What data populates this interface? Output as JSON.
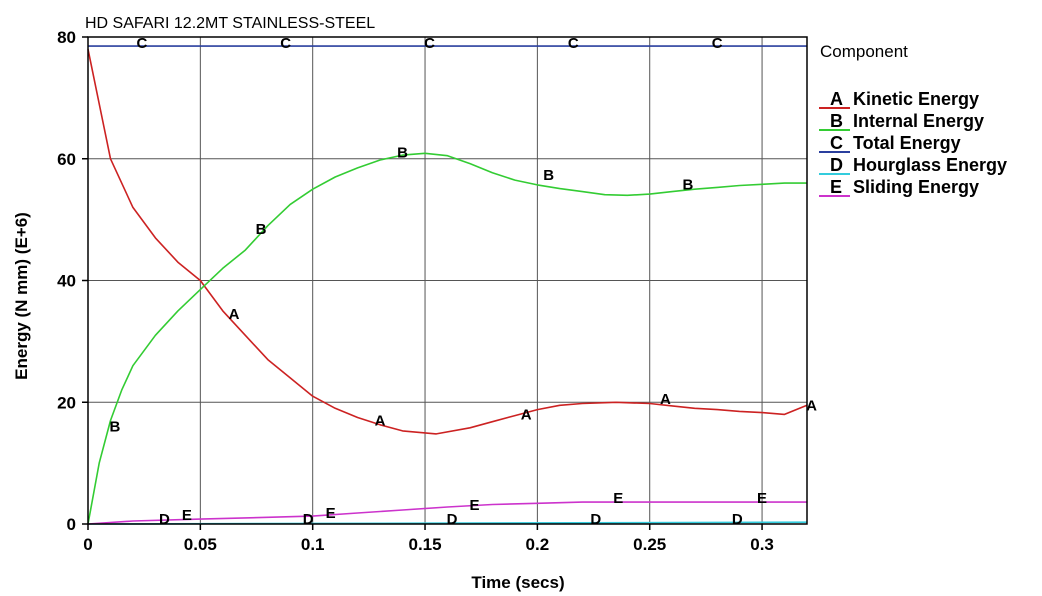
{
  "chart_data": {
    "type": "line",
    "title": "HD SAFARI 12.2MT STAINLESS-STEEL",
    "xlabel": "Time (secs)",
    "ylabel": "Energy (N mm) (E+6)",
    "xlim": [
      0,
      0.32
    ],
    "ylim": [
      0,
      80
    ],
    "xticks": [
      "0",
      "0.05",
      "0.1",
      "0.15",
      "0.2",
      "0.25",
      "0.3"
    ],
    "xtick_values": [
      0,
      0.05,
      0.1,
      0.15,
      0.2,
      0.25,
      0.3
    ],
    "yticks": [
      "0",
      "20",
      "40",
      "60",
      "80"
    ],
    "ytick_values": [
      0,
      20,
      40,
      60,
      80
    ],
    "grid": true,
    "legend_title": "Component",
    "legend_position": "right",
    "series": [
      {
        "letter": "A",
        "name": "Kinetic Energy",
        "color": "#cc2222",
        "points": [
          [
            0,
            78
          ],
          [
            0.01,
            60
          ],
          [
            0.02,
            52
          ],
          [
            0.03,
            47
          ],
          [
            0.04,
            43
          ],
          [
            0.05,
            40
          ],
          [
            0.06,
            35
          ],
          [
            0.07,
            31
          ],
          [
            0.08,
            27
          ],
          [
            0.09,
            24
          ],
          [
            0.1,
            21
          ],
          [
            0.11,
            19
          ],
          [
            0.12,
            17.5
          ],
          [
            0.13,
            16.3
          ],
          [
            0.14,
            15.3
          ],
          [
            0.155,
            14.8
          ],
          [
            0.17,
            15.8
          ],
          [
            0.18,
            16.8
          ],
          [
            0.19,
            17.8
          ],
          [
            0.2,
            18.8
          ],
          [
            0.21,
            19.5
          ],
          [
            0.22,
            19.8
          ],
          [
            0.235,
            20
          ],
          [
            0.25,
            19.8
          ],
          [
            0.26,
            19.4
          ],
          [
            0.27,
            19
          ],
          [
            0.28,
            18.8
          ],
          [
            0.29,
            18.5
          ],
          [
            0.3,
            18.3
          ],
          [
            0.31,
            18
          ],
          [
            0.32,
            19.5
          ]
        ],
        "markers": [
          [
            0.065,
            34.5
          ],
          [
            0.13,
            17
          ],
          [
            0.195,
            18
          ],
          [
            0.257,
            20.5
          ],
          [
            0.322,
            19.5
          ]
        ]
      },
      {
        "letter": "B",
        "name": "Internal Energy",
        "color": "#33cc33",
        "points": [
          [
            0,
            0
          ],
          [
            0.005,
            10
          ],
          [
            0.01,
            17
          ],
          [
            0.015,
            22
          ],
          [
            0.02,
            26
          ],
          [
            0.03,
            31
          ],
          [
            0.04,
            35
          ],
          [
            0.05,
            38.5
          ],
          [
            0.06,
            42
          ],
          [
            0.07,
            45
          ],
          [
            0.08,
            49
          ],
          [
            0.09,
            52.5
          ],
          [
            0.1,
            55
          ],
          [
            0.11,
            57
          ],
          [
            0.12,
            58.5
          ],
          [
            0.13,
            59.8
          ],
          [
            0.14,
            60.6
          ],
          [
            0.15,
            60.9
          ],
          [
            0.16,
            60.5
          ],
          [
            0.17,
            59.2
          ],
          [
            0.18,
            57.7
          ],
          [
            0.19,
            56.5
          ],
          [
            0.2,
            55.7
          ],
          [
            0.21,
            55.1
          ],
          [
            0.22,
            54.6
          ],
          [
            0.23,
            54.1
          ],
          [
            0.24,
            54
          ],
          [
            0.25,
            54.2
          ],
          [
            0.26,
            54.6
          ],
          [
            0.27,
            55
          ],
          [
            0.28,
            55.3
          ],
          [
            0.29,
            55.6
          ],
          [
            0.3,
            55.8
          ],
          [
            0.31,
            56
          ],
          [
            0.32,
            56
          ]
        ],
        "markers": [
          [
            0.012,
            16
          ],
          [
            0.077,
            48.5
          ],
          [
            0.14,
            61
          ],
          [
            0.205,
            57.3
          ],
          [
            0.267,
            55.8
          ]
        ]
      },
      {
        "letter": "C",
        "name": "Total Energy",
        "color": "#2a3f9e",
        "points": [
          [
            0,
            78.5
          ],
          [
            0.32,
            78.5
          ]
        ],
        "markers": [
          [
            0.024,
            79
          ],
          [
            0.088,
            79
          ],
          [
            0.152,
            79
          ],
          [
            0.216,
            79
          ],
          [
            0.28,
            79
          ]
        ]
      },
      {
        "letter": "D",
        "name": "Hourglass Energy",
        "color": "#33ccdd",
        "points": [
          [
            0,
            0
          ],
          [
            0.32,
            0.3
          ]
        ],
        "markers": [
          [
            0.034,
            0.8
          ],
          [
            0.098,
            0.8
          ],
          [
            0.162,
            0.8
          ],
          [
            0.226,
            0.8
          ],
          [
            0.289,
            0.8
          ]
        ]
      },
      {
        "letter": "E",
        "name": "Sliding Energy",
        "color": "#cc33cc",
        "points": [
          [
            0,
            0
          ],
          [
            0.02,
            0.5
          ],
          [
            0.05,
            0.8
          ],
          [
            0.08,
            1.1
          ],
          [
            0.1,
            1.3
          ],
          [
            0.12,
            1.8
          ],
          [
            0.14,
            2.3
          ],
          [
            0.16,
            2.8
          ],
          [
            0.18,
            3.2
          ],
          [
            0.2,
            3.4
          ],
          [
            0.22,
            3.6
          ],
          [
            0.25,
            3.6
          ],
          [
            0.28,
            3.6
          ],
          [
            0.3,
            3.6
          ],
          [
            0.32,
            3.6
          ]
        ],
        "markers": [
          [
            0.044,
            1.5
          ],
          [
            0.108,
            1.8
          ],
          [
            0.172,
            3.1
          ],
          [
            0.236,
            4.3
          ],
          [
            0.3,
            4.3
          ]
        ]
      }
    ]
  }
}
